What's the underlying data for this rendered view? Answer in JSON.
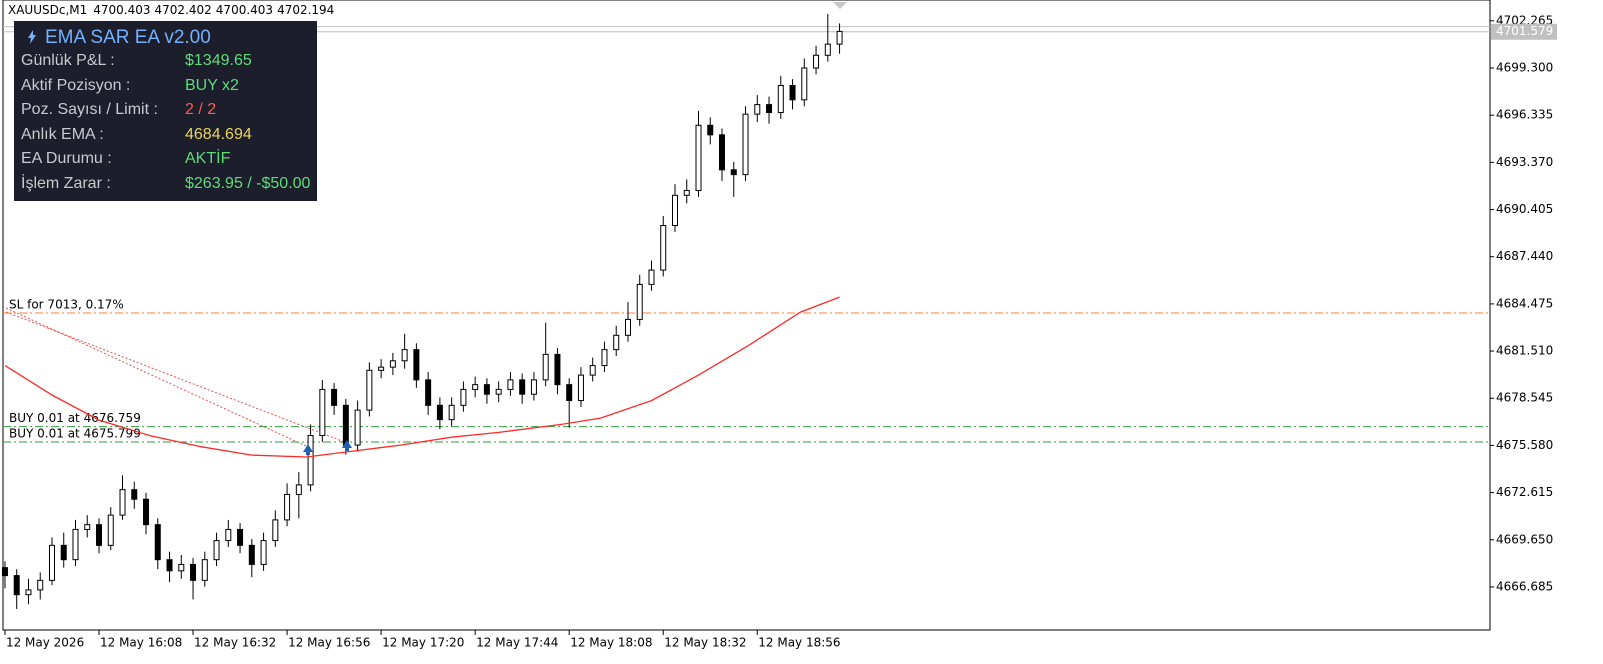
{
  "chart_data": {
    "type": "candlestick",
    "symbol": "XAUUSDc,M1",
    "header_values": [
      4700.403,
      4702.402,
      4700.403,
      4702.194
    ],
    "ylim": [
      4663.98,
      4703.574
    ],
    "yticks": [
      4666.685,
      {
        "value": 4669.65,
        "label": "4669.650"
      },
      4672.615,
      {
        "value": 4675.58,
        "label": "4675.580"
      },
      4678.545,
      {
        "value": 4681.51,
        "label": "4681.510"
      },
      4684.475,
      {
        "value": 4687.44,
        "label": "4687.440"
      },
      4690.405,
      {
        "value": 4693.37,
        "label": "4693.370"
      },
      4696.335,
      {
        "value": 4699.3,
        "label": "4699.300"
      },
      4702.265
    ],
    "xlim": [
      -0.5,
      379
    ],
    "xticks": [
      {
        "value": 0,
        "label": "12 May 2026"
      },
      {
        "value": 24,
        "label": "12 May 16:08"
      },
      {
        "value": 48,
        "label": "12 May 16:32"
      },
      {
        "value": 72,
        "label": "12 May 16:56"
      },
      {
        "value": 96,
        "label": "12 May 17:20"
      },
      {
        "value": 120,
        "label": "12 May 17:44"
      },
      {
        "value": 144,
        "label": "12 May 18:08"
      },
      {
        "value": 168,
        "label": "12 May 18:32"
      },
      {
        "value": 192,
        "label": "12 May 18:56"
      }
    ],
    "bid": 4701.579,
    "ask": 4701.9,
    "up_color": "#ffffff",
    "down_color": "#000000",
    "candles": {
      "x": [
        0,
        3,
        6,
        9,
        12,
        15,
        18,
        21,
        24,
        27,
        30,
        33,
        36,
        39,
        42,
        45,
        48,
        51,
        54,
        57,
        60,
        63,
        66,
        69,
        72,
        75,
        78,
        81,
        84,
        87,
        90,
        93,
        96,
        99,
        102,
        105,
        108,
        111,
        114,
        117,
        120,
        123,
        126,
        129,
        132,
        135,
        138,
        141,
        144,
        147,
        150,
        153,
        156,
        159,
        162,
        165,
        168,
        171,
        174,
        177,
        180,
        183,
        186,
        189,
        192,
        195,
        198,
        201,
        204,
        207,
        210,
        213
      ],
      "open": [
        4667.9,
        4667.4,
        4666.2,
        4666.5,
        4667.1,
        4669.3,
        4668.4,
        4670.3,
        4670.6,
        4669.3,
        4671.2,
        4672.8,
        4672.2,
        4670.6,
        4668.4,
        4667.7,
        4668.1,
        4667.1,
        4668.4,
        4669.6,
        4670.3,
        4669.3,
        4668.1,
        4669.6,
        4670.9,
        4672.5,
        4673.1,
        4676.2,
        4679.1,
        4678.1,
        4675.6,
        4677.8,
        4680.3,
        4680.5,
        4680.9,
        4681.6,
        4679.7,
        4678.1,
        4677.2,
        4678.1,
        4679.1,
        4679.4,
        4678.8,
        4679.1,
        4679.7,
        4678.8,
        4679.7,
        4681.3,
        4679.4,
        4678.4,
        4680.0,
        4680.6,
        4681.6,
        4682.5,
        4683.5,
        4685.7,
        4686.6,
        4689.4,
        4691.3,
        4691.6,
        4695.7,
        4695.1,
        4692.9,
        4692.6,
        4696.4,
        4697.0,
        4696.5,
        4698.2,
        4697.3,
        4699.3,
        4700.1,
        4700.8
      ],
      "high": [
        4668.3,
        4667.8,
        4667.2,
        4667.6,
        4669.8,
        4670.1,
        4670.9,
        4671.2,
        4671.0,
        4671.7,
        4673.7,
        4673.3,
        4672.6,
        4671.0,
        4668.9,
        4668.7,
        4668.5,
        4668.9,
        4670.1,
        4670.9,
        4670.7,
        4669.7,
        4670.1,
        4671.5,
        4673.2,
        4673.9,
        4676.9,
        4679.7,
        4679.5,
        4678.5,
        4678.4,
        4680.8,
        4681.0,
        4681.4,
        4682.6,
        4682.0,
        4680.2,
        4678.6,
        4678.6,
        4679.6,
        4679.9,
        4679.8,
        4679.6,
        4680.2,
        4680.1,
        4680.2,
        4683.3,
        4681.7,
        4679.8,
        4680.5,
        4681.1,
        4682.1,
        4683.1,
        4684.6,
        4686.3,
        4687.2,
        4690.0,
        4692.0,
        4692.3,
        4696.6,
        4696.2,
        4695.5,
        4693.4,
        4696.9,
        4697.6,
        4697.5,
        4698.8,
        4698.6,
        4699.9,
        4700.7,
        4702.7,
        4702.1
      ],
      "low": [
        4666.6,
        4665.3,
        4665.6,
        4665.9,
        4666.8,
        4667.9,
        4668.0,
        4669.8,
        4668.8,
        4669.0,
        4670.9,
        4671.6,
        4670.0,
        4667.8,
        4667.0,
        4667.2,
        4665.9,
        4666.7,
        4668.0,
        4669.2,
        4668.8,
        4667.3,
        4667.7,
        4669.2,
        4670.5,
        4671.0,
        4672.7,
        4675.8,
        4677.5,
        4675.0,
        4675.2,
        4677.4,
        4679.8,
        4680.0,
        4680.4,
        4679.2,
        4677.5,
        4676.6,
        4676.8,
        4677.7,
        4678.6,
        4678.2,
        4678.3,
        4678.7,
        4678.2,
        4678.4,
        4679.3,
        4678.8,
        4676.7,
        4678.0,
        4679.6,
        4680.2,
        4681.2,
        4682.1,
        4683.1,
        4685.3,
        4686.2,
        4689.0,
        4690.8,
        4691.2,
        4694.5,
        4692.2,
        4691.2,
        4692.2,
        4695.9,
        4695.8,
        4696.1,
        4696.7,
        4696.9,
        4698.9,
        4699.7,
        4700.2
      ],
      "close": [
        4667.4,
        4666.2,
        4666.5,
        4667.1,
        4669.3,
        4668.4,
        4670.3,
        4670.6,
        4669.3,
        4671.2,
        4672.8,
        4672.2,
        4670.6,
        4668.4,
        4667.7,
        4668.1,
        4667.1,
        4668.4,
        4669.6,
        4670.3,
        4669.3,
        4668.1,
        4669.6,
        4670.9,
        4672.5,
        4673.1,
        4676.2,
        4679.1,
        4678.1,
        4675.6,
        4677.8,
        4680.3,
        4680.5,
        4680.9,
        4681.6,
        4679.7,
        4678.1,
        4677.2,
        4678.1,
        4679.1,
        4679.4,
        4678.8,
        4679.1,
        4679.7,
        4678.8,
        4679.7,
        4681.3,
        4679.4,
        4678.4,
        4680.0,
        4680.6,
        4681.6,
        4682.5,
        4683.5,
        4685.7,
        4686.6,
        4689.4,
        4691.3,
        4691.6,
        4695.7,
        4695.1,
        4692.9,
        4692.6,
        4696.4,
        4697.0,
        4696.5,
        4698.2,
        4697.3,
        4699.3,
        4700.1,
        4700.8,
        4701.6
      ]
    },
    "ema": {
      "color": "#ff2a2a",
      "x": [
        0,
        12,
        24,
        37,
        50,
        63,
        77,
        88,
        101,
        114,
        126,
        142,
        152,
        165,
        177,
        190,
        203,
        213
      ],
      "values": [
        4680.6,
        4678.75,
        4677.17,
        4676.2,
        4675.5,
        4674.97,
        4674.85,
        4675.2,
        4675.6,
        4676.1,
        4676.4,
        4676.9,
        4677.3,
        4678.4,
        4680.0,
        4681.9,
        4683.96,
        4684.9
      ]
    },
    "levels": [
      {
        "label": "SL for 7013, 0.17%",
        "value": 4683.9,
        "color": "#ff7f3f"
      },
      {
        "label": "BUY 0.01 at 4676.759",
        "value": 4676.759,
        "color": "#2e9e3e"
      },
      {
        "label": "BUY 0.01 at 4675.799",
        "value": 4675.799,
        "color": "#2e9e3e"
      }
    ]
  },
  "panel": {
    "title": "EMA SAR EA v2.00",
    "rows": [
      {
        "label": "Günlük P&L :",
        "value": "$1349.65",
        "color": "#5fdc7a"
      },
      {
        "label": "Aktif Pozisyon :",
        "value": "BUY x2",
        "color": "#5fdc7a"
      },
      {
        "label": "Poz. Sayısı / Limit :",
        "value": "2 / 2",
        "color": "#ff5b4f"
      },
      {
        "label": "Anlık EMA :",
        "value": "4684.694",
        "color": "#e8d45c"
      },
      {
        "label": "EA Durumu :",
        "value": "AKTİF",
        "color": "#5fdc7a"
      },
      {
        "label": "İşlem Zarar :",
        "value": "$263.95 / -$50.00",
        "color": "#5fdc7a"
      }
    ]
  }
}
